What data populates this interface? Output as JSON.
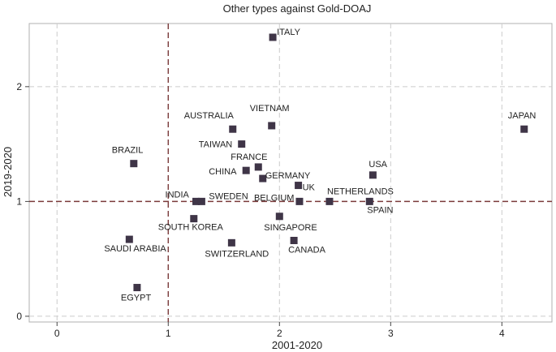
{
  "chart_data": {
    "type": "scatter",
    "title": "Other types against Gold-DOAJ",
    "xlabel": "2001-2020",
    "ylabel": "2019-2020",
    "xlim": [
      -0.25,
      4.45
    ],
    "ylim": [
      -0.05,
      2.55
    ],
    "xticks": [
      0,
      1,
      2,
      3,
      4
    ],
    "yticks": [
      0,
      1,
      2
    ],
    "grid": "dashed at ticks",
    "reference_lines": {
      "x": 1,
      "y": 1
    },
    "colors": {
      "marker": "#3f3547",
      "reference": "#7a3a3a",
      "grid": "#cccccc",
      "frame": "#b0b0b0"
    },
    "points": [
      {
        "label": "ITALY",
        "x": 1.94,
        "y": 2.43
      },
      {
        "label": "JAPAN",
        "x": 4.2,
        "y": 1.63
      },
      {
        "label": "AUSTRALIA",
        "x": 1.58,
        "y": 1.63
      },
      {
        "label": "VIETNAM",
        "x": 1.93,
        "y": 1.66
      },
      {
        "label": "TAIWAN",
        "x": 1.66,
        "y": 1.5
      },
      {
        "label": "BRAZIL",
        "x": 0.69,
        "y": 1.33
      },
      {
        "label": "FRANCE",
        "x": 1.81,
        "y": 1.3
      },
      {
        "label": "CHINA",
        "x": 1.7,
        "y": 1.27
      },
      {
        "label": "GERMANY",
        "x": 1.85,
        "y": 1.2
      },
      {
        "label": "USA",
        "x": 2.84,
        "y": 1.23
      },
      {
        "label": "UK",
        "x": 2.17,
        "y": 1.14
      },
      {
        "label": "INDIA",
        "x": 1.25,
        "y": 1.0
      },
      {
        "label": "SWEDEN",
        "x": 1.3,
        "y": 1.0
      },
      {
        "label": "BELGIUM",
        "x": 2.18,
        "y": 1.0
      },
      {
        "label": "NETHERLANDS",
        "x": 2.45,
        "y": 1.0
      },
      {
        "label": "SPAIN",
        "x": 2.81,
        "y": 1.0
      },
      {
        "label": "SOUTH KOREA",
        "x": 1.23,
        "y": 0.85
      },
      {
        "label": "SINGAPORE",
        "x": 2.0,
        "y": 0.87
      },
      {
        "label": "SAUDI ARABIA",
        "x": 0.65,
        "y": 0.67
      },
      {
        "label": "SWITZERLAND",
        "x": 1.57,
        "y": 0.64
      },
      {
        "label": "CANADA",
        "x": 2.13,
        "y": 0.66
      },
      {
        "label": "EGYPT",
        "x": 0.72,
        "y": 0.25
      }
    ]
  }
}
